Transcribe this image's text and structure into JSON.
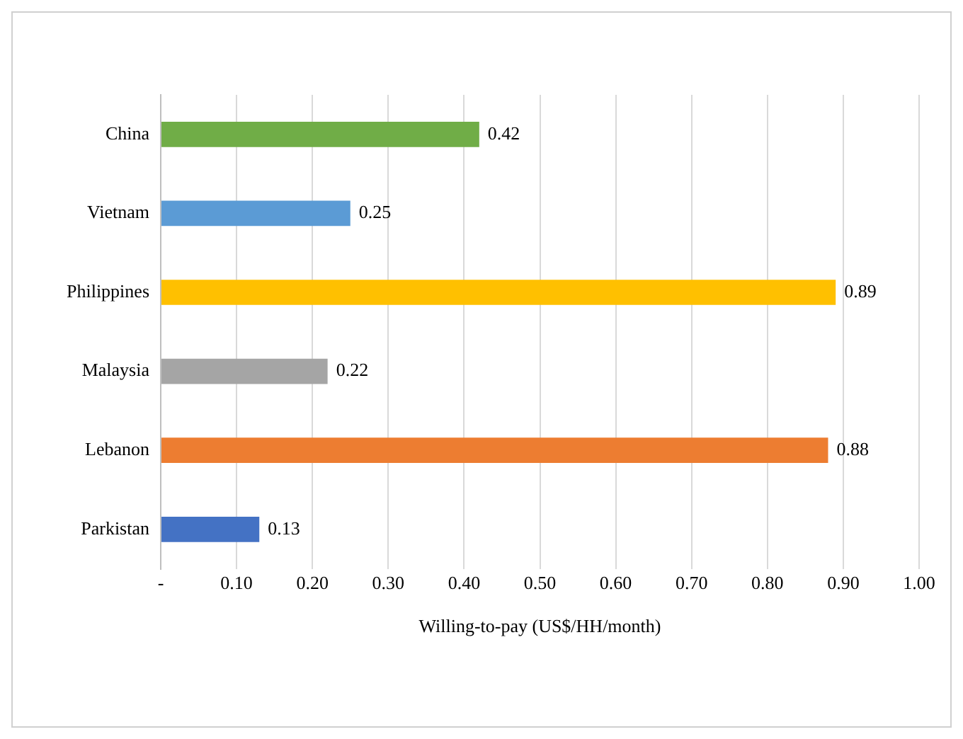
{
  "chart_data": {
    "type": "bar",
    "orientation": "horizontal",
    "xlabel": "Willing-to-pay (US$/HH/month)",
    "categories": [
      "China",
      "Vietnam",
      "Philippines",
      "Malaysia",
      "Lebanon",
      "Parkistan"
    ],
    "values": [
      0.42,
      0.25,
      0.89,
      0.22,
      0.88,
      0.13
    ],
    "colors": [
      "#70ad47",
      "#5b9bd5",
      "#ffc000",
      "#a5a5a5",
      "#ed7d31",
      "#4472c4"
    ],
    "xlim": [
      0,
      1
    ],
    "xticks": [
      {
        "value": 0,
        "label": "-"
      },
      {
        "value": 0.1,
        "label": "0.10"
      },
      {
        "value": 0.2,
        "label": "0.20"
      },
      {
        "value": 0.3,
        "label": "0.30"
      },
      {
        "value": 0.4,
        "label": "0.40"
      },
      {
        "value": 0.5,
        "label": "0.50"
      },
      {
        "value": 0.6,
        "label": "0.60"
      },
      {
        "value": 0.7,
        "label": "0.70"
      },
      {
        "value": 0.8,
        "label": "0.80"
      },
      {
        "value": 0.9,
        "label": "0.90"
      },
      {
        "value": 1,
        "label": "1.00"
      }
    ],
    "grid": "x",
    "data_labels": true
  }
}
